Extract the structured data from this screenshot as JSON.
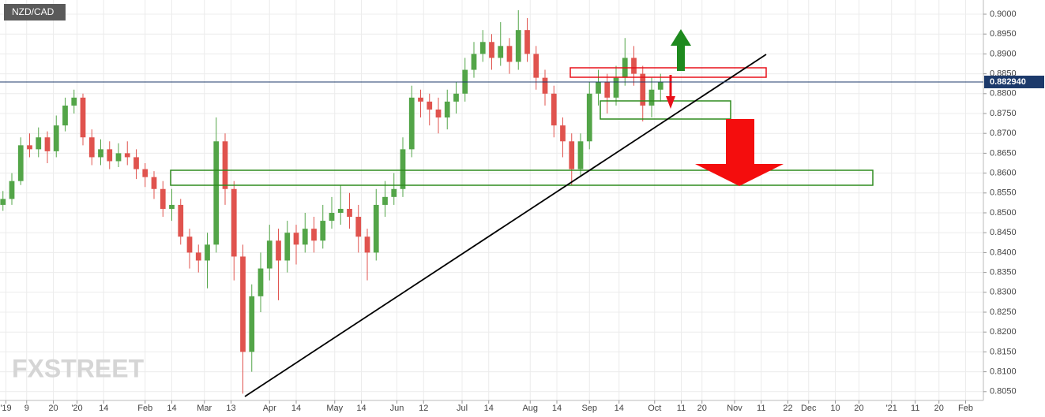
{
  "chart_data": {
    "type": "candlestick",
    "symbol": "NZD/CAD",
    "watermark": "FXSTREET",
    "up_color": "#53a548",
    "down_color": "#e0534e",
    "grid": true,
    "x": [
      1,
      4,
      7,
      10,
      13,
      16,
      19,
      22,
      25,
      28,
      31,
      34,
      37,
      40,
      43,
      46,
      49,
      52,
      55,
      58,
      61,
      64,
      67,
      70,
      73,
      76,
      79,
      82,
      85,
      88,
      91,
      94,
      97,
      100,
      103,
      106,
      109,
      112,
      115,
      118,
      121,
      124,
      127,
      130,
      133,
      136,
      139,
      142,
      145,
      148,
      151,
      154,
      157,
      160,
      163,
      166,
      169,
      172,
      175,
      178,
      181,
      184,
      187,
      190,
      193,
      196,
      199,
      202,
      205,
      208,
      211,
      214,
      217,
      220,
      223
    ],
    "open": [
      0.852,
      0.8535,
      0.858,
      0.867,
      0.866,
      0.869,
      0.8655,
      0.872,
      0.877,
      0.879,
      0.869,
      0.864,
      0.866,
      0.863,
      0.865,
      0.864,
      0.861,
      0.859,
      0.856,
      0.851,
      0.852,
      0.844,
      0.84,
      0.838,
      0.842,
      0.868,
      0.856,
      0.839,
      0.815,
      0.829,
      0.836,
      0.843,
      0.838,
      0.845,
      0.842,
      0.846,
      0.843,
      0.848,
      0.85,
      0.851,
      0.849,
      0.844,
      0.84,
      0.852,
      0.854,
      0.856,
      0.866,
      0.879,
      0.878,
      0.876,
      0.874,
      0.878,
      0.88,
      0.886,
      0.89,
      0.893,
      0.889,
      0.892,
      0.888,
      0.896,
      0.89,
      0.884,
      0.88,
      0.872,
      0.868,
      0.861,
      0.868,
      0.88,
      0.883,
      0.879,
      0.884,
      0.889,
      0.885,
      0.877,
      0.881
    ],
    "high": [
      0.8555,
      0.86,
      0.869,
      0.87,
      0.8715,
      0.8705,
      0.8745,
      0.879,
      0.881,
      0.88,
      0.871,
      0.8685,
      0.868,
      0.8675,
      0.868,
      0.866,
      0.8625,
      0.8605,
      0.858,
      0.856,
      0.8535,
      0.846,
      0.842,
      0.845,
      0.874,
      0.87,
      0.858,
      0.842,
      0.832,
      0.84,
      0.847,
      0.846,
      0.848,
      0.847,
      0.85,
      0.849,
      0.852,
      0.854,
      0.857,
      0.855,
      0.852,
      0.846,
      0.856,
      0.858,
      0.86,
      0.869,
      0.882,
      0.881,
      0.88,
      0.879,
      0.881,
      0.883,
      0.889,
      0.893,
      0.896,
      0.895,
      0.898,
      0.894,
      0.901,
      0.899,
      0.892,
      0.886,
      0.882,
      0.874,
      0.87,
      0.87,
      0.883,
      0.886,
      0.885,
      0.887,
      0.894,
      0.892,
      0.887,
      0.884,
      0.885
    ],
    "low": [
      0.8505,
      0.852,
      0.857,
      0.864,
      0.864,
      0.8625,
      0.864,
      0.8705,
      0.875,
      0.867,
      0.862,
      0.862,
      0.861,
      0.8615,
      0.862,
      0.8585,
      0.8565,
      0.8535,
      0.849,
      0.848,
      0.842,
      0.836,
      0.835,
      0.831,
      0.84,
      0.852,
      0.833,
      0.8045,
      0.81,
      0.825,
      0.833,
      0.828,
      0.835,
      0.837,
      0.84,
      0.84,
      0.841,
      0.846,
      0.847,
      0.846,
      0.84,
      0.833,
      0.838,
      0.849,
      0.852,
      0.854,
      0.864,
      0.874,
      0.872,
      0.87,
      0.871,
      0.875,
      0.878,
      0.884,
      0.888,
      0.886,
      0.887,
      0.885,
      0.886,
      0.888,
      0.881,
      0.877,
      0.869,
      0.864,
      0.857,
      0.859,
      0.866,
      0.877,
      0.875,
      0.877,
      0.882,
      0.882,
      0.873,
      0.874,
      0.878
    ],
    "close": [
      0.8535,
      0.858,
      0.867,
      0.866,
      0.869,
      0.8655,
      0.872,
      0.877,
      0.879,
      0.869,
      0.864,
      0.866,
      0.863,
      0.865,
      0.864,
      0.861,
      0.859,
      0.856,
      0.851,
      0.852,
      0.844,
      0.84,
      0.838,
      0.842,
      0.868,
      0.856,
      0.839,
      0.815,
      0.829,
      0.836,
      0.843,
      0.838,
      0.845,
      0.842,
      0.846,
      0.843,
      0.848,
      0.85,
      0.851,
      0.849,
      0.844,
      0.84,
      0.852,
      0.854,
      0.856,
      0.866,
      0.879,
      0.878,
      0.876,
      0.874,
      0.878,
      0.88,
      0.886,
      0.89,
      0.893,
      0.889,
      0.892,
      0.888,
      0.896,
      0.89,
      0.884,
      0.88,
      0.872,
      0.868,
      0.861,
      0.868,
      0.88,
      0.883,
      0.879,
      0.884,
      0.889,
      0.885,
      0.877,
      0.881,
      0.883
    ],
    "last": {
      "value": 0.88294,
      "label": "0.882940"
    },
    "xlim": [
      0,
      332
    ],
    "xticks": [
      {
        "value": 2,
        "label": "'19"
      },
      {
        "value": 9,
        "label": "9"
      },
      {
        "value": 18,
        "label": "20"
      },
      {
        "value": 26,
        "label": "'20"
      },
      {
        "value": 35,
        "label": "14"
      },
      {
        "value": 49,
        "label": "Feb"
      },
      {
        "value": 58,
        "label": "14"
      },
      {
        "value": 69,
        "label": "Mar"
      },
      {
        "value": 78,
        "label": "13"
      },
      {
        "value": 91,
        "label": "Apr"
      },
      {
        "value": 100,
        "label": "14"
      },
      {
        "value": 113,
        "label": "May"
      },
      {
        "value": 122,
        "label": "14"
      },
      {
        "value": 134,
        "label": "Jun"
      },
      {
        "value": 143,
        "label": "12"
      },
      {
        "value": 156,
        "label": "Jul"
      },
      {
        "value": 165,
        "label": "14"
      },
      {
        "value": 179,
        "label": "Aug"
      },
      {
        "value": 188,
        "label": "14"
      },
      {
        "value": 199,
        "label": "Sep"
      },
      {
        "value": 209,
        "label": "14"
      },
      {
        "value": 221,
        "label": "Oct"
      },
      {
        "value": 230,
        "label": "11"
      },
      {
        "value": 237,
        "label": "20"
      },
      {
        "value": 248,
        "label": "Nov"
      },
      {
        "value": 257,
        "label": "11"
      },
      {
        "value": 266,
        "label": "22"
      },
      {
        "value": 273,
        "label": "Dec"
      },
      {
        "value": 282,
        "label": "10"
      },
      {
        "value": 290,
        "label": "20"
      },
      {
        "value": 301,
        "label": "'21"
      },
      {
        "value": 309,
        "label": "11"
      },
      {
        "value": 317,
        "label": "20"
      },
      {
        "value": 326,
        "label": "Feb"
      }
    ],
    "ylim": [
      0.80278,
      0.90357
    ],
    "yticks": [
      {
        "value": 0.9,
        "label": "0.9000"
      },
      {
        "value": 0.895,
        "label": "0.8950"
      },
      {
        "value": 0.89,
        "label": "0.8900"
      },
      {
        "value": 0.885,
        "label": "0.8850"
      },
      {
        "value": 0.88,
        "label": "0.8800"
      },
      {
        "value": 0.875,
        "label": "0.8750"
      },
      {
        "value": 0.87,
        "label": "0.8700"
      },
      {
        "value": 0.865,
        "label": "0.8650"
      },
      {
        "value": 0.86,
        "label": "0.8600"
      },
      {
        "value": 0.855,
        "label": "0.8550"
      },
      {
        "value": 0.85,
        "label": "0.8500"
      },
      {
        "value": 0.845,
        "label": "0.8450"
      },
      {
        "value": 0.84,
        "label": "0.8400"
      },
      {
        "value": 0.835,
        "label": "0.8350"
      },
      {
        "value": 0.83,
        "label": "0.8300"
      },
      {
        "value": 0.825,
        "label": "0.8250"
      },
      {
        "value": 0.82,
        "label": "0.8200"
      },
      {
        "value": 0.815,
        "label": "0.8150"
      },
      {
        "value": 0.81,
        "label": "0.8100"
      },
      {
        "value": 0.805,
        "label": "0.8050"
      }
    ]
  }
}
